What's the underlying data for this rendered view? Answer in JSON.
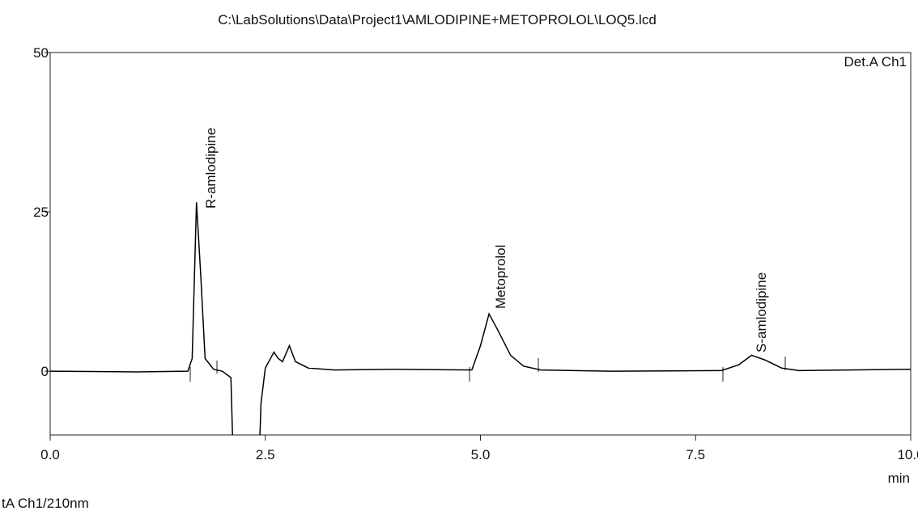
{
  "chart_data": {
    "type": "line",
    "title": "C:\\LabSolutions\\Data\\Project1\\AMLODIPINE+METOPROLOL\\LOQ5.lcd",
    "xlabel": "min",
    "footer": "tA Ch1/210nm",
    "annotations": [
      "R-amlodipine",
      "Metoprolol",
      "S-amlodipine"
    ],
    "x": [
      0,
      1.0,
      1.6,
      1.65,
      1.7,
      1.75,
      1.8,
      1.9,
      2.0,
      2.1,
      2.15,
      2.4,
      2.45,
      2.5,
      2.6,
      2.65,
      2.7,
      2.78,
      2.85,
      3.0,
      3.3,
      4.0,
      4.9,
      5.0,
      5.1,
      5.2,
      5.35,
      5.5,
      5.7,
      6.5,
      7.8,
      8.0,
      8.15,
      8.3,
      8.5,
      8.7,
      10.0
    ],
    "series": [
      {
        "name": "Det.A Ch1",
        "color": "#000000",
        "values": [
          0,
          -0.1,
          0,
          2,
          26.5,
          15,
          2,
          0.3,
          0,
          -1,
          -25,
          -25,
          -5,
          0.5,
          3,
          2,
          1.5,
          4,
          1.5,
          0.5,
          0.2,
          0.3,
          0.2,
          4,
          9,
          6.5,
          2.5,
          0.8,
          0.2,
          0,
          0.1,
          1,
          2.5,
          1.8,
          0.5,
          0.1,
          0.3
        ]
      }
    ],
    "xlim": [
      0,
      10
    ],
    "ylim": [
      -10,
      50
    ],
    "xticks": [
      {
        "value": 0,
        "label": "0.0"
      },
      2.5,
      {
        "value": 5,
        "label": "5.0"
      },
      7.5,
      {
        "value": 10,
        "label": "10.0"
      }
    ],
    "yticks": [
      0,
      25,
      50
    ]
  }
}
